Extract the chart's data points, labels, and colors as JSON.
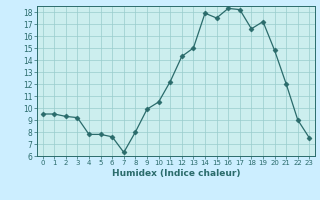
{
  "x": [
    0,
    1,
    2,
    3,
    4,
    5,
    6,
    7,
    8,
    9,
    10,
    11,
    12,
    13,
    14,
    15,
    16,
    17,
    18,
    19,
    20,
    21,
    22,
    23
  ],
  "y": [
    9.5,
    9.5,
    9.3,
    9.2,
    7.8,
    7.8,
    7.6,
    6.3,
    8.0,
    9.9,
    10.5,
    12.2,
    14.3,
    15.0,
    17.9,
    17.5,
    18.3,
    18.2,
    16.6,
    17.2,
    14.8,
    12.0,
    9.0,
    7.5
  ],
  "xlabel": "Humidex (Indice chaleur)",
  "ylim": [
    6,
    18.5
  ],
  "xlim": [
    -0.5,
    23.5
  ],
  "yticks": [
    6,
    7,
    8,
    9,
    10,
    11,
    12,
    13,
    14,
    15,
    16,
    17,
    18
  ],
  "xticks": [
    0,
    1,
    2,
    3,
    4,
    5,
    6,
    7,
    8,
    9,
    10,
    11,
    12,
    13,
    14,
    15,
    16,
    17,
    18,
    19,
    20,
    21,
    22,
    23
  ],
  "line_color": "#2a6b6b",
  "marker": "D",
  "marker_size": 2.5,
  "bg_color": "#cceeff",
  "plot_bg_color": "#cceeee",
  "grid_color": "#99cccc",
  "xlabel_color": "#2a6b6b",
  "tick_label_color": "#2a6b6b",
  "spine_color": "#2a6b6b"
}
